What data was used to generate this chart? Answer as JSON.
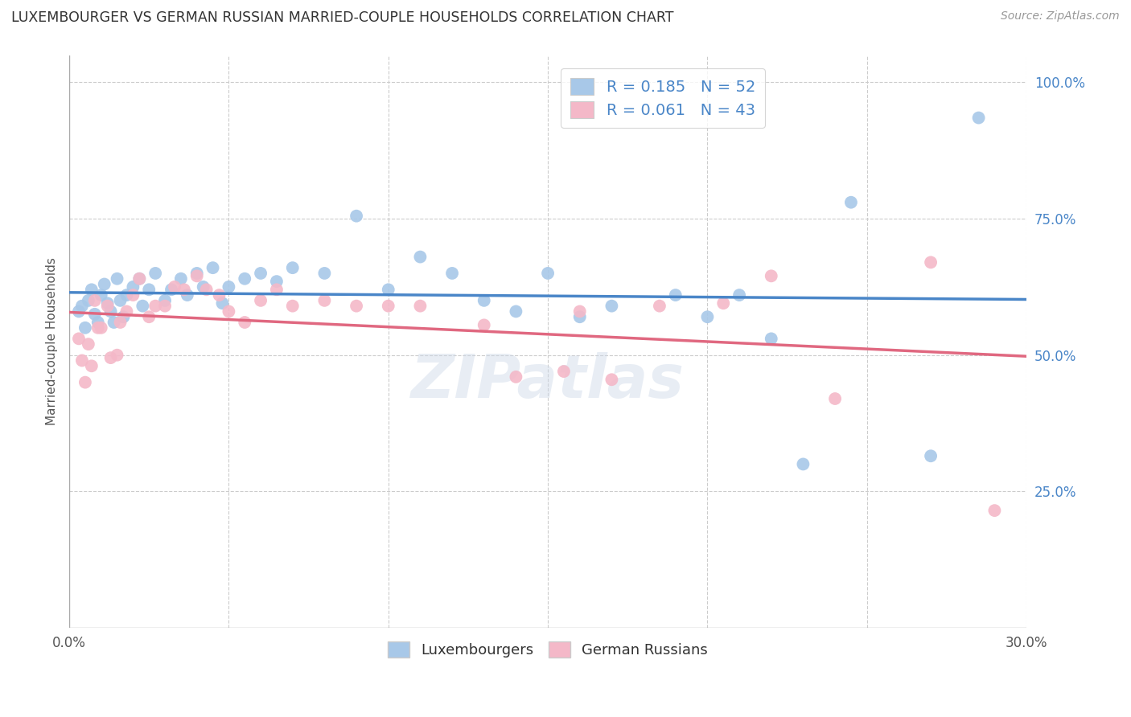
{
  "title": "LUXEMBOURGER VS GERMAN RUSSIAN MARRIED-COUPLE HOUSEHOLDS CORRELATION CHART",
  "source": "Source: ZipAtlas.com",
  "ylabel": "Married-couple Households",
  "xlim": [
    0.0,
    0.3
  ],
  "ylim": [
    0.0,
    1.05
  ],
  "xticks": [
    0.0,
    0.05,
    0.1,
    0.15,
    0.2,
    0.25,
    0.3
  ],
  "xtick_labels": [
    "0.0%",
    "",
    "",
    "",
    "",
    "",
    "30.0%"
  ],
  "yticks_right": [
    0.25,
    0.5,
    0.75,
    1.0
  ],
  "ytick_labels_right": [
    "25.0%",
    "50.0%",
    "75.0%",
    "100.0%"
  ],
  "legend_label1": "R = 0.185   N = 52",
  "legend_label2": "R = 0.061   N = 43",
  "legend_bottom_label1": "Luxembourgers",
  "legend_bottom_label2": "German Russians",
  "blue_color": "#a8c8e8",
  "pink_color": "#f4b8c8",
  "blue_line_color": "#4a86c8",
  "pink_line_color": "#e06880",
  "blue_label_color": "#4a86c8",
  "watermark": "ZIPatlas",
  "blue_scatter_x": [
    0.003,
    0.004,
    0.005,
    0.006,
    0.007,
    0.008,
    0.009,
    0.01,
    0.011,
    0.012,
    0.013,
    0.014,
    0.015,
    0.016,
    0.017,
    0.018,
    0.02,
    0.022,
    0.023,
    0.025,
    0.027,
    0.03,
    0.032,
    0.035,
    0.037,
    0.04,
    0.042,
    0.045,
    0.048,
    0.05,
    0.055,
    0.06,
    0.065,
    0.07,
    0.08,
    0.09,
    0.1,
    0.11,
    0.12,
    0.13,
    0.14,
    0.15,
    0.16,
    0.17,
    0.19,
    0.2,
    0.21,
    0.22,
    0.23,
    0.245,
    0.27,
    0.285
  ],
  "blue_scatter_y": [
    0.58,
    0.59,
    0.55,
    0.6,
    0.62,
    0.575,
    0.56,
    0.61,
    0.63,
    0.595,
    0.58,
    0.56,
    0.64,
    0.6,
    0.57,
    0.61,
    0.625,
    0.64,
    0.59,
    0.62,
    0.65,
    0.6,
    0.62,
    0.64,
    0.61,
    0.65,
    0.625,
    0.66,
    0.595,
    0.625,
    0.64,
    0.65,
    0.635,
    0.66,
    0.65,
    0.755,
    0.62,
    0.68,
    0.65,
    0.6,
    0.58,
    0.65,
    0.57,
    0.59,
    0.61,
    0.57,
    0.61,
    0.53,
    0.3,
    0.78,
    0.315,
    0.935
  ],
  "pink_scatter_x": [
    0.003,
    0.004,
    0.005,
    0.006,
    0.007,
    0.008,
    0.009,
    0.01,
    0.012,
    0.013,
    0.015,
    0.016,
    0.018,
    0.02,
    0.022,
    0.025,
    0.027,
    0.03,
    0.033,
    0.036,
    0.04,
    0.043,
    0.047,
    0.05,
    0.055,
    0.06,
    0.065,
    0.07,
    0.08,
    0.09,
    0.1,
    0.11,
    0.13,
    0.14,
    0.155,
    0.16,
    0.17,
    0.185,
    0.205,
    0.22,
    0.24,
    0.27,
    0.29
  ],
  "pink_scatter_y": [
    0.53,
    0.49,
    0.45,
    0.52,
    0.48,
    0.6,
    0.55,
    0.55,
    0.59,
    0.495,
    0.5,
    0.56,
    0.58,
    0.61,
    0.64,
    0.57,
    0.59,
    0.59,
    0.625,
    0.62,
    0.645,
    0.62,
    0.61,
    0.58,
    0.56,
    0.6,
    0.62,
    0.59,
    0.6,
    0.59,
    0.59,
    0.59,
    0.555,
    0.46,
    0.47,
    0.58,
    0.455,
    0.59,
    0.595,
    0.645,
    0.42,
    0.67,
    0.215
  ]
}
